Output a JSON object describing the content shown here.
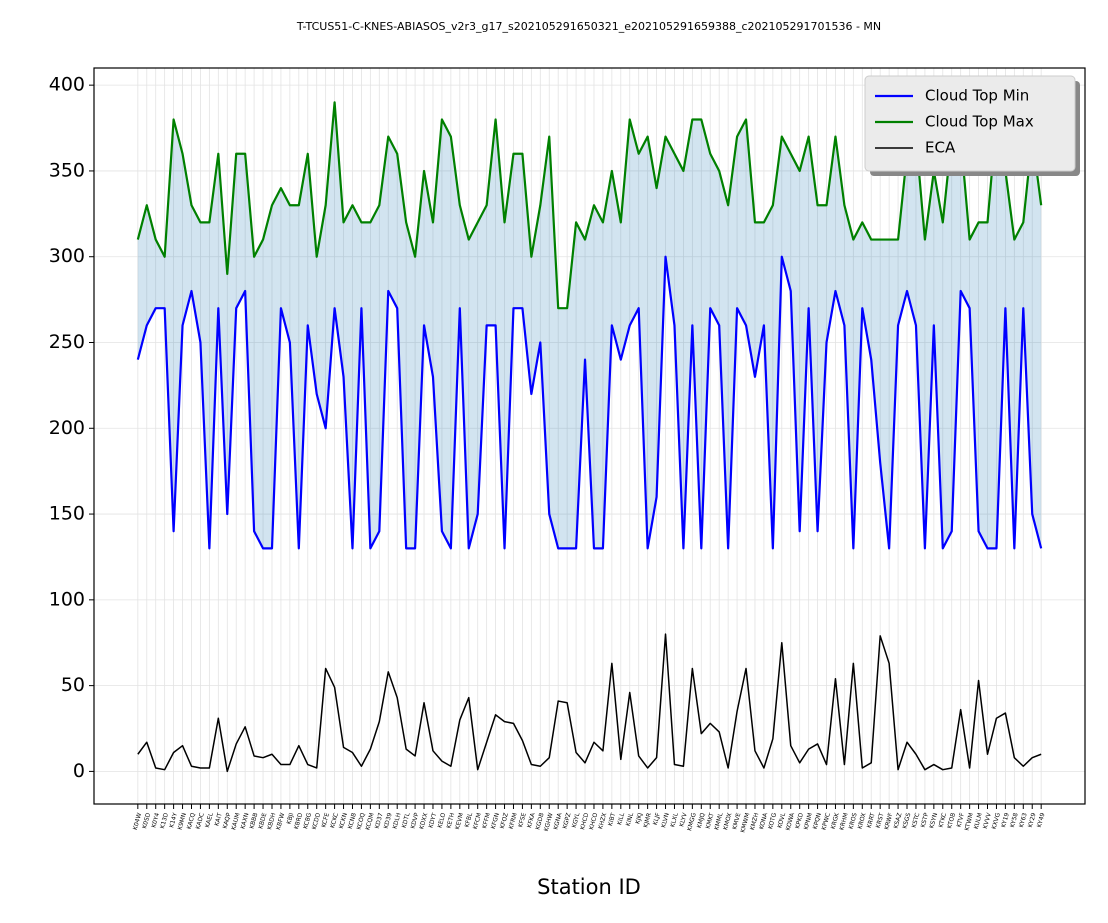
{
  "chart_data": {
    "type": "line",
    "title": "T-TCUS51-C-KNES-ABIASOS_v2r3_g17_s202105291650321_e202105291659388_c202105291701536 - MN",
    "x_label": "Station ID",
    "categories": [
      "K04W",
      "K0SD",
      "K0Y4",
      "K13D",
      "K14Y",
      "K9MN",
      "KACQ",
      "KADC",
      "KAEL",
      "KAIT",
      "KAQP",
      "KAUM",
      "KAXN",
      "KBBB",
      "KBDE",
      "KBDH",
      "KBFW",
      "KBJI",
      "KBRD",
      "KCBG",
      "KCDD",
      "KCFE",
      "KCKC",
      "KCKN",
      "KCNB",
      "KCOQ",
      "KCQM",
      "KD37",
      "KD39",
      "KDLH",
      "KDTL",
      "KDVP",
      "KDXX",
      "KDYT",
      "KELO",
      "KETH",
      "KEVM",
      "KFBL",
      "KFCM",
      "KFFM",
      "KFGN",
      "KFOZ",
      "KFRM",
      "KFSE",
      "KFKA",
      "KGDB",
      "KGHW",
      "KGNA",
      "KGPZ",
      "KGYL",
      "KHCD",
      "KHCO",
      "KHZX",
      "KIBT",
      "KILL",
      "KINL",
      "KJKJ",
      "KJMR",
      "KLJF",
      "KLVN",
      "KLXL",
      "KLYV",
      "KMGG",
      "KMJQ",
      "KMKT",
      "KMML",
      "KMOX",
      "KMVE",
      "KMWM",
      "KMZH",
      "KONA",
      "KOTG",
      "KOVL",
      "KOWA",
      "KPKD",
      "KPNM",
      "KPQN",
      "KPWC",
      "KRGK",
      "KRHM",
      "KROS",
      "KROX",
      "KRRT",
      "KRST",
      "KRWF",
      "KSAZ",
      "KSGS",
      "KSTC",
      "KSTP",
      "KSYN",
      "KTKC",
      "KTOB",
      "KTVF",
      "KTWM",
      "KULM",
      "KVVV",
      "KXVG",
      "KY19",
      "KY58",
      "KY63",
      "KY29",
      "KY49"
    ],
    "series": [
      {
        "name": "Cloud Top Min",
        "color": "#0000ff",
        "width": 2.2,
        "values": [
          240,
          260,
          270,
          270,
          140,
          260,
          280,
          250,
          130,
          270,
          150,
          270,
          280,
          140,
          130,
          130,
          270,
          250,
          130,
          260,
          220,
          200,
          270,
          230,
          130,
          270,
          130,
          140,
          280,
          270,
          130,
          130,
          260,
          230,
          140,
          130,
          270,
          130,
          150,
          260,
          260,
          130,
          270,
          270,
          220,
          250,
          150,
          130,
          130,
          130,
          240,
          130,
          130,
          260,
          240,
          260,
          270,
          130,
          160,
          300,
          260,
          130,
          260,
          130,
          270,
          260,
          130,
          270,
          260,
          230,
          260,
          130,
          300,
          280,
          140,
          270,
          140,
          250,
          280,
          260,
          130,
          270,
          240,
          180,
          130,
          260,
          280,
          260,
          130,
          260,
          130,
          140,
          280,
          270,
          140,
          130,
          130,
          270,
          130,
          270,
          150,
          130
        ]
      },
      {
        "name": "Cloud Top Max",
        "color": "#008000",
        "width": 2.2,
        "values": [
          310,
          330,
          310,
          300,
          380,
          360,
          330,
          320,
          320,
          360,
          290,
          360,
          360,
          300,
          310,
          330,
          340,
          330,
          330,
          360,
          300,
          330,
          390,
          320,
          330,
          320,
          320,
          330,
          370,
          360,
          320,
          300,
          350,
          320,
          380,
          370,
          330,
          310,
          320,
          330,
          380,
          320,
          360,
          360,
          300,
          330,
          370,
          270,
          270,
          320,
          310,
          330,
          320,
          350,
          320,
          380,
          360,
          370,
          340,
          370,
          360,
          350,
          380,
          380,
          360,
          350,
          330,
          370,
          380,
          320,
          320,
          330,
          370,
          360,
          350,
          370,
          330,
          330,
          370,
          330,
          310,
          320,
          310,
          310,
          310,
          310,
          360,
          370,
          310,
          350,
          320,
          370,
          370,
          310,
          320,
          320,
          380,
          350,
          310,
          320,
          370,
          330
        ]
      },
      {
        "name": "ECA",
        "color": "#000000",
        "width": 1.5,
        "values": [
          10,
          17,
          2,
          1,
          11,
          15,
          3,
          2,
          2,
          31,
          0,
          16,
          26,
          9,
          8,
          10,
          4,
          4,
          15,
          4,
          2,
          60,
          49,
          14,
          11,
          3,
          13,
          29,
          58,
          43,
          13,
          9,
          40,
          12,
          6,
          3,
          30,
          43,
          1,
          17,
          33,
          29,
          28,
          18,
          4,
          3,
          8,
          41,
          40,
          11,
          5,
          17,
          12,
          63,
          7,
          46,
          9,
          2,
          8,
          80,
          4,
          3,
          60,
          22,
          28,
          23,
          2,
          35,
          60,
          12,
          2,
          19,
          75,
          15,
          5,
          13,
          16,
          4,
          54,
          4,
          63,
          2,
          5,
          79,
          63,
          1,
          17,
          10,
          1,
          4,
          1,
          2,
          36,
          2,
          53,
          10,
          31,
          34,
          8,
          3,
          8,
          10
        ]
      }
    ],
    "fill_color": "#1f77b4",
    "ylim": [
      -19,
      410
    ],
    "yticks": [
      0,
      50,
      100,
      150,
      200,
      250,
      300,
      350,
      400
    ],
    "grid": true,
    "legend": "upper right"
  }
}
